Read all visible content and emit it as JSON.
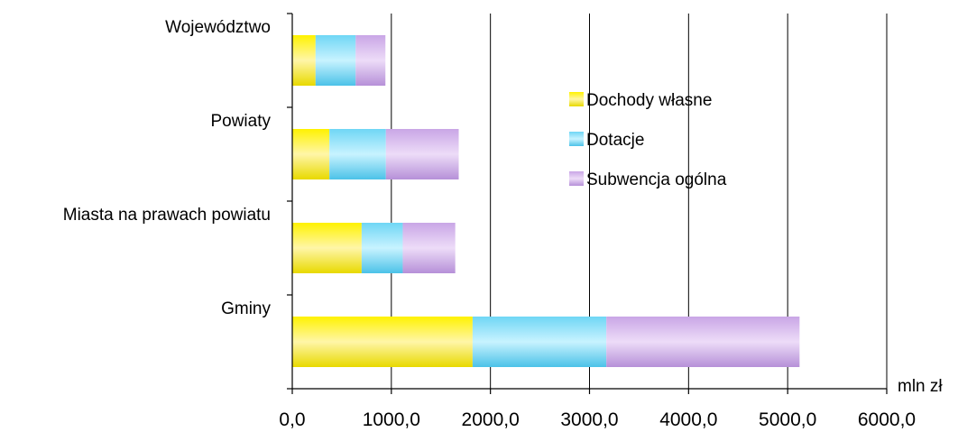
{
  "chart_data": {
    "type": "bar",
    "orientation": "horizontal",
    "stacked": true,
    "categories": [
      "Województwo",
      "Powiaty",
      "Miasta na prawach powiatu",
      "Gminy"
    ],
    "series": [
      {
        "name": "Dochody własne",
        "values": [
          235,
          375,
          700,
          1820
        ]
      },
      {
        "name": "Dotacje",
        "values": [
          405,
          570,
          415,
          1350
        ]
      },
      {
        "name": "Subwencja ogólna",
        "values": [
          300,
          735,
          530,
          1950
        ]
      }
    ],
    "xlim": [
      0,
      6000
    ],
    "xticks": [
      0,
      1000,
      2000,
      3000,
      4000,
      5000,
      6000
    ],
    "xtick_labels": [
      "0,0",
      "1000,0",
      "2000,0",
      "3000,0",
      "4000,0",
      "5000,0",
      "6000,0"
    ],
    "xlabel": "mln zł",
    "grid": "vertical",
    "legend_position": "right-inside",
    "colors": {
      "Dochody własne": {
        "light": "#fff6a8",
        "mid": "#fff200",
        "dark": "#e8d900"
      },
      "Dotacje": {
        "light": "#c8f3ff",
        "mid": "#6fd6f5",
        "dark": "#4cc2e8"
      },
      "Subwencja ogólna": {
        "light": "#eddcf8",
        "mid": "#c9a6e6",
        "dark": "#b690d8"
      }
    }
  }
}
